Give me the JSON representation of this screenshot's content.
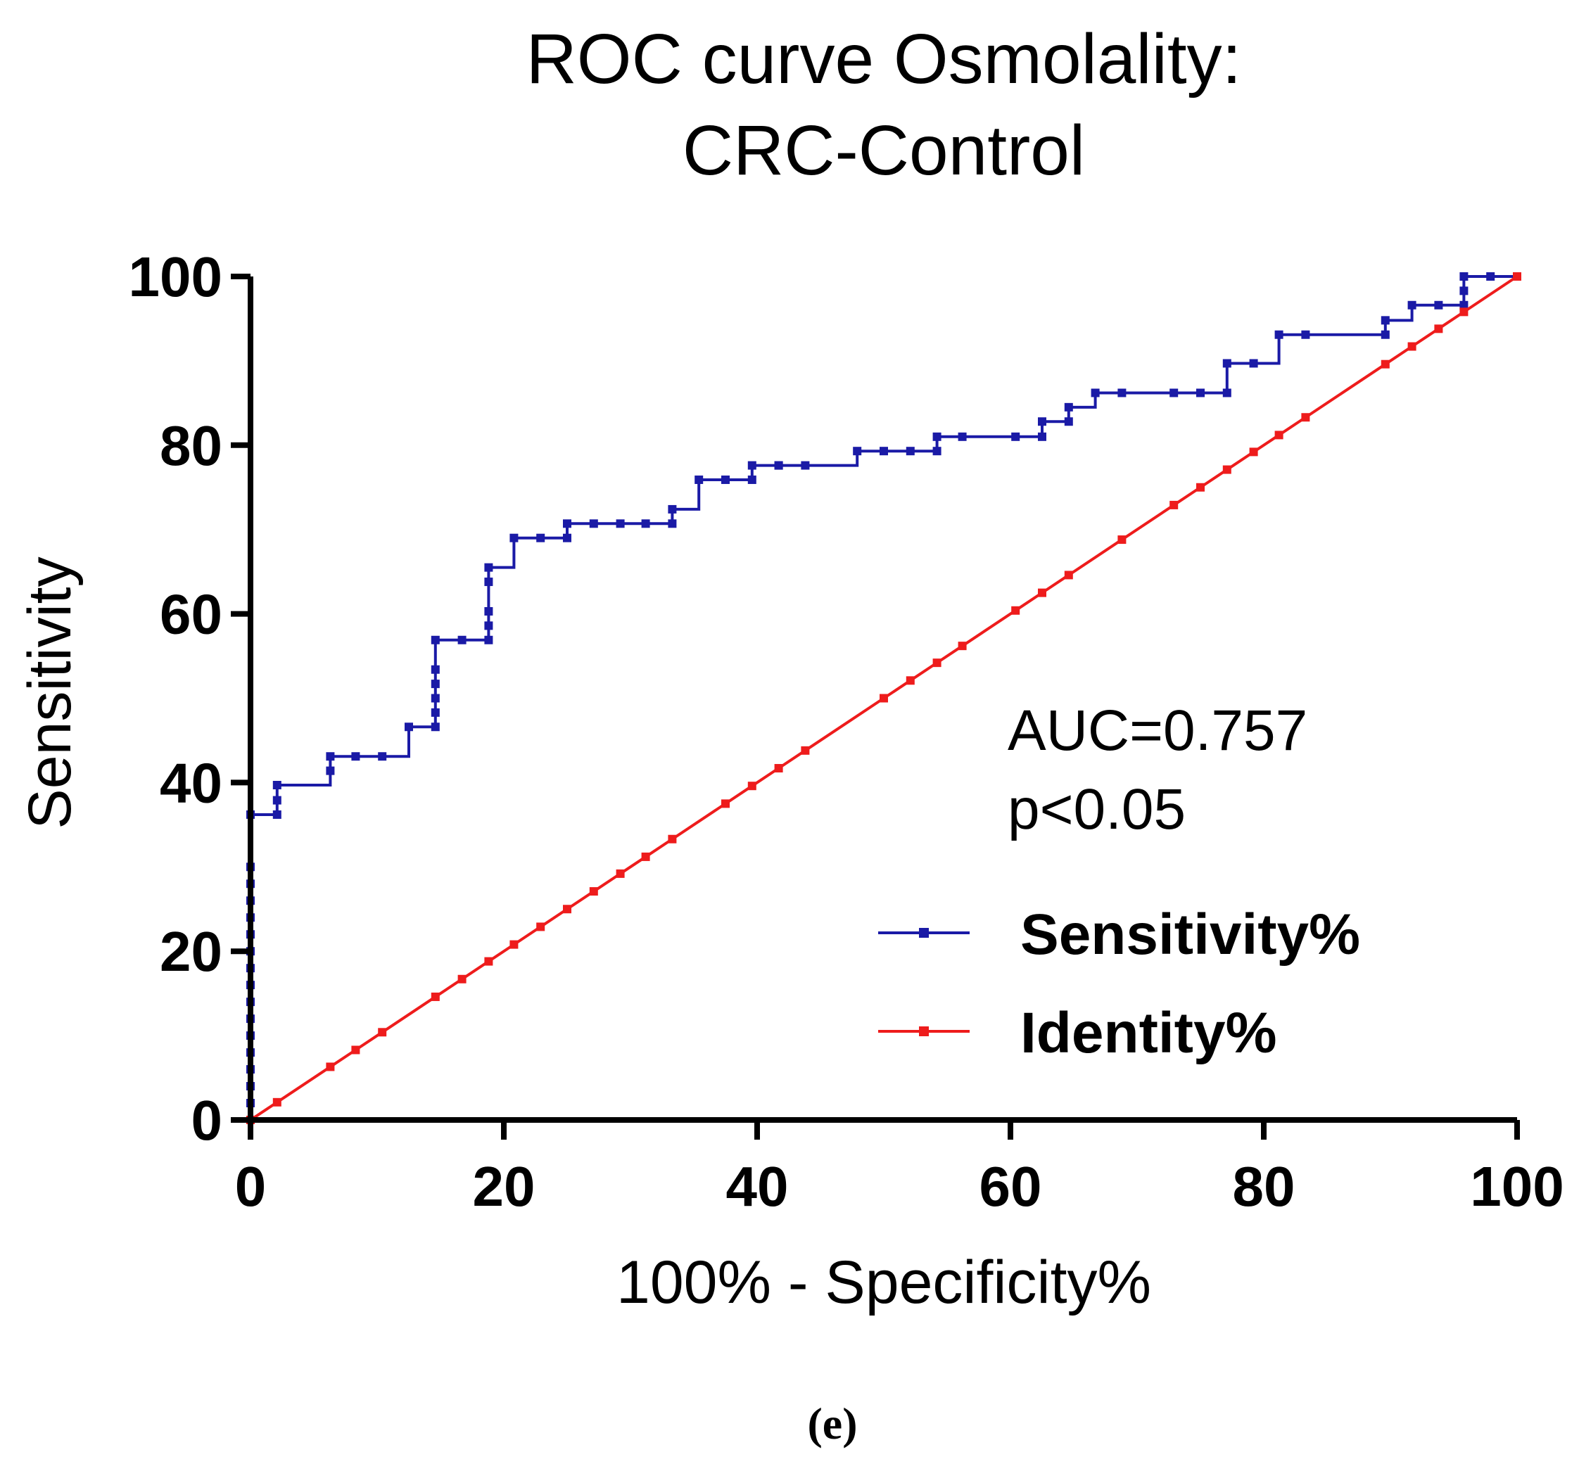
{
  "chart_data": {
    "type": "line",
    "title_lines": [
      "ROC curve Osmolality:",
      "CRC-Control"
    ],
    "xlabel": "100% - Specificity%",
    "ylabel": "Sensitivity",
    "xlim": [
      0,
      100
    ],
    "ylim": [
      0,
      100
    ],
    "x_ticks": [
      0,
      20,
      40,
      60,
      80,
      100
    ],
    "y_ticks": [
      0,
      20,
      40,
      60,
      80,
      100
    ],
    "grid": false,
    "legend_placement": "bottom-right",
    "annotations": [
      "AUC=0.757",
      "p<0.05"
    ],
    "panel_label": "(e)",
    "series": [
      {
        "name": "Sensitivity%",
        "color": "#1a1aa6",
        "marker": "square",
        "step": true,
        "x": [
          0,
          0,
          0,
          0,
          0,
          0,
          0,
          0,
          0,
          0,
          0,
          0,
          0,
          0,
          0,
          0,
          0,
          2.1,
          2.1,
          2.1,
          6.3,
          6.3,
          8.3,
          10.4,
          12.5,
          14.6,
          14.6,
          14.6,
          14.6,
          14.6,
          14.6,
          16.7,
          18.8,
          18.8,
          18.8,
          18.8,
          18.8,
          20.8,
          22.9,
          25,
          25,
          27.1,
          29.2,
          31.2,
          33.3,
          33.3,
          35.4,
          37.5,
          39.6,
          39.6,
          41.7,
          41.7,
          43.8,
          47.9,
          50,
          52.1,
          54.2,
          54.2,
          56.2,
          60.4,
          62.5,
          62.5,
          64.6,
          64.6,
          66.7,
          68.8,
          72.9,
          75,
          77.1,
          77.1,
          79.2,
          81.2,
          83.3,
          89.6,
          89.6,
          91.7,
          93.8,
          95.8,
          95.8,
          95.8,
          97.9,
          100
        ],
        "y": [
          0,
          2,
          4,
          6,
          8,
          10,
          12,
          14,
          16,
          18,
          20,
          22,
          24,
          26,
          28,
          30,
          36.2,
          36.2,
          37.9,
          39.7,
          41.4,
          43.1,
          43.1,
          43.1,
          46.6,
          46.6,
          48.3,
          50,
          51.7,
          53.4,
          56.9,
          56.9,
          56.9,
          58.6,
          60.3,
          63.8,
          65.5,
          69,
          69,
          69,
          70.7,
          70.7,
          70.7,
          70.7,
          70.7,
          72.4,
          75.9,
          75.9,
          75.9,
          77.6,
          77.6,
          77.6,
          77.6,
          79.3,
          79.3,
          79.3,
          79.3,
          81,
          81,
          81,
          81,
          82.8,
          82.8,
          84.5,
          86.2,
          86.2,
          86.2,
          86.2,
          86.2,
          89.7,
          89.7,
          93.1,
          93.1,
          93.1,
          94.8,
          96.6,
          96.6,
          96.6,
          98.3,
          100,
          100,
          100
        ]
      },
      {
        "name": "Identity%",
        "color": "#ee1c1c",
        "marker": "square",
        "step": false,
        "x": [
          0,
          2.1,
          6.3,
          8.3,
          10.4,
          14.6,
          16.7,
          18.8,
          20.8,
          22.9,
          25,
          27.1,
          29.2,
          31.2,
          33.3,
          37.5,
          39.6,
          41.7,
          43.8,
          50,
          52.1,
          54.2,
          56.2,
          60.4,
          62.5,
          64.6,
          68.8,
          72.9,
          75,
          77.1,
          79.2,
          81.2,
          83.3,
          89.6,
          91.7,
          93.8,
          95.8,
          100
        ],
        "y": [
          0,
          2.1,
          6.3,
          8.3,
          10.4,
          14.6,
          16.7,
          18.8,
          20.8,
          22.9,
          25,
          27.1,
          29.2,
          31.2,
          33.3,
          37.5,
          39.6,
          41.7,
          43.8,
          50,
          52.1,
          54.2,
          56.2,
          60.4,
          62.5,
          64.6,
          68.8,
          72.9,
          75,
          77.1,
          79.2,
          81.2,
          83.3,
          89.6,
          91.7,
          93.8,
          95.8,
          100
        ]
      }
    ]
  }
}
